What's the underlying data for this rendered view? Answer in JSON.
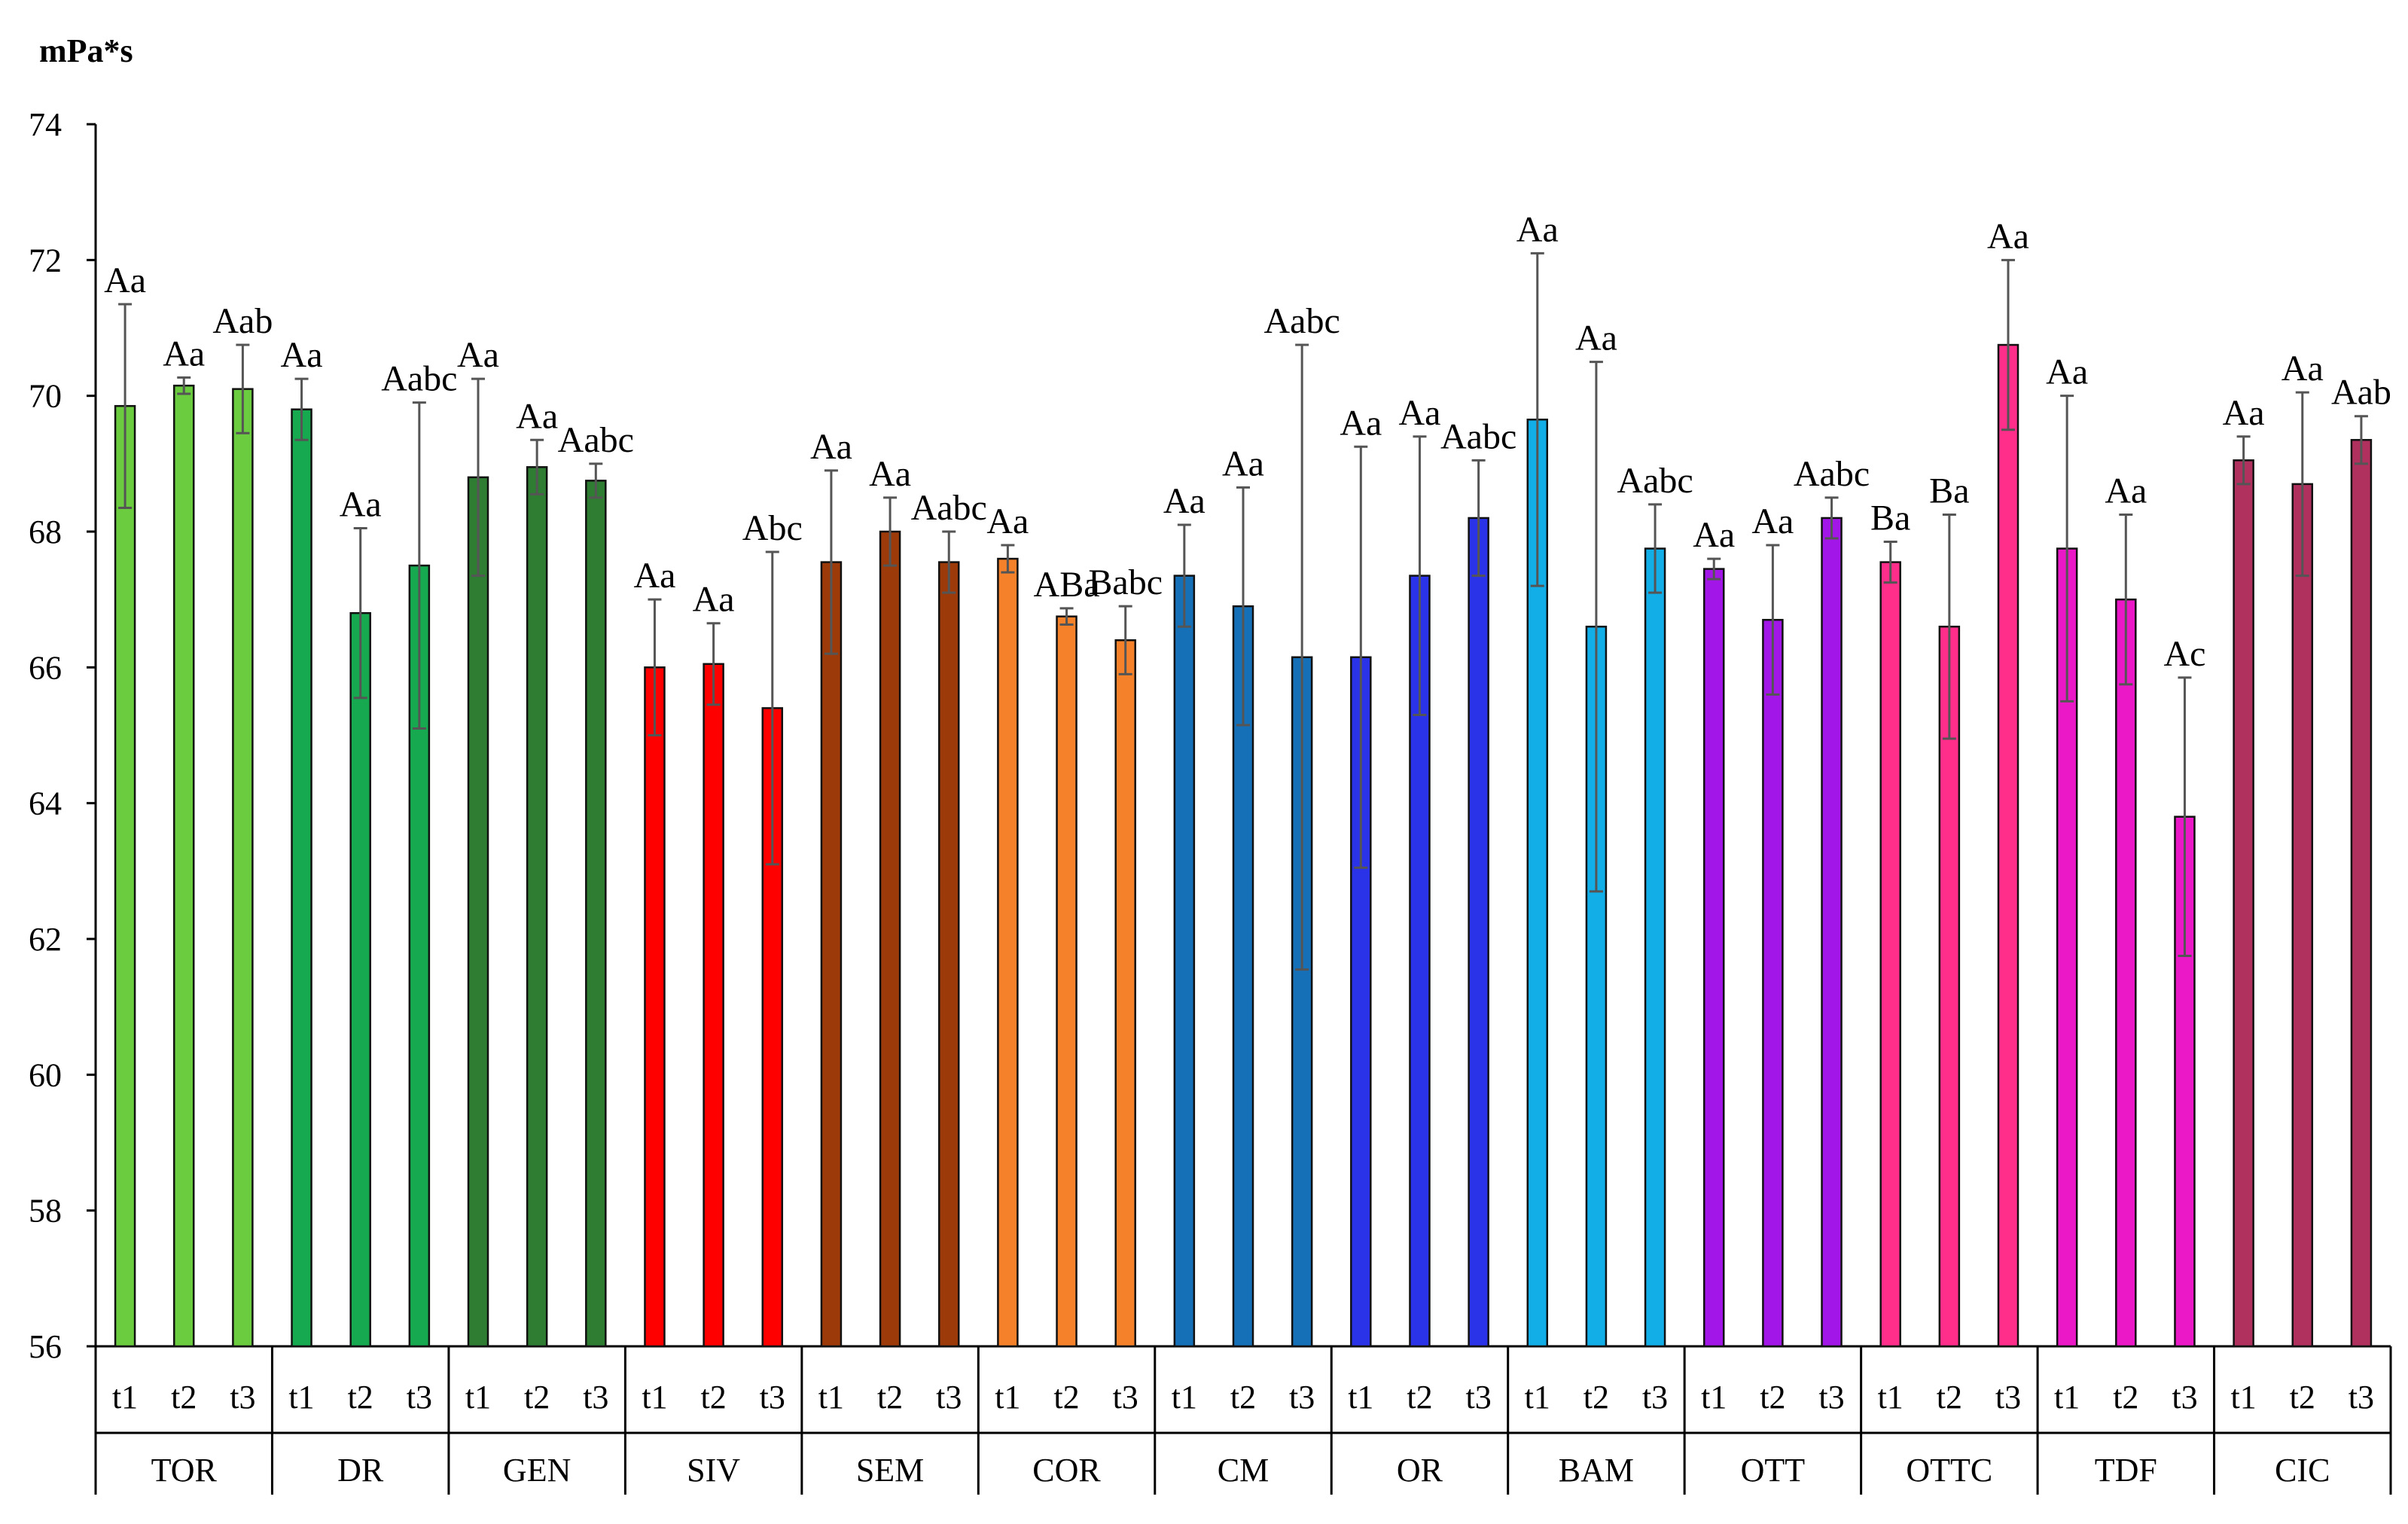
{
  "chart_data": {
    "type": "bar",
    "unit_label": "mPa*s",
    "ylim": [
      56,
      74
    ],
    "y_ticks": [
      56,
      58,
      60,
      62,
      64,
      66,
      68,
      70,
      72,
      74
    ],
    "error_bars": true,
    "grid": false,
    "groups": [
      {
        "name": "TOR",
        "color": "#6acc3e",
        "bars": [
          {
            "x": "t1",
            "value": 69.85,
            "err": 1.5,
            "label": "Aa"
          },
          {
            "x": "t2",
            "value": 70.15,
            "err": 0.12,
            "label": "Aa"
          },
          {
            "x": "t3",
            "value": 70.1,
            "err": 0.65,
            "label": "Aab"
          }
        ]
      },
      {
        "name": "DR",
        "color": "#16a94f",
        "bars": [
          {
            "x": "t1",
            "value": 69.8,
            "err": 0.45,
            "label": "Aa"
          },
          {
            "x": "t2",
            "value": 66.8,
            "err": 1.25,
            "label": "Aa"
          },
          {
            "x": "t3",
            "value": 67.5,
            "err": 2.4,
            "label": "Aabc"
          }
        ]
      },
      {
        "name": "GEN",
        "color": "#2e7d32",
        "bars": [
          {
            "x": "t1",
            "value": 68.8,
            "err": 1.45,
            "label": "Aa"
          },
          {
            "x": "t2",
            "value": 68.95,
            "err": 0.4,
            "label": "Aa"
          },
          {
            "x": "t3",
            "value": 68.75,
            "err": 0.25,
            "label": "Aabc"
          }
        ]
      },
      {
        "name": "SIV",
        "color": "#ff0000",
        "bars": [
          {
            "x": "t1",
            "value": 66.0,
            "err": 1.0,
            "label": "Aa"
          },
          {
            "x": "t2",
            "value": 66.05,
            "err": 0.6,
            "label": "Aa"
          },
          {
            "x": "t3",
            "value": 65.4,
            "err": 2.3,
            "label": "Abc"
          }
        ]
      },
      {
        "name": "SEM",
        "color": "#9c3a0a",
        "bars": [
          {
            "x": "t1",
            "value": 67.55,
            "err": 1.35,
            "label": "Aa"
          },
          {
            "x": "t2",
            "value": 68.0,
            "err": 0.5,
            "label": "Aa"
          },
          {
            "x": "t3",
            "value": 67.55,
            "err": 0.45,
            "label": "Aabc"
          }
        ]
      },
      {
        "name": "COR",
        "color": "#f5822a",
        "bars": [
          {
            "x": "t1",
            "value": 67.6,
            "err": 0.2,
            "label": "Aa"
          },
          {
            "x": "t2",
            "value": 66.75,
            "err": 0.12,
            "label": "ABa"
          },
          {
            "x": "t3",
            "value": 66.4,
            "err": 0.5,
            "label": "Babc"
          }
        ]
      },
      {
        "name": "CM",
        "color": "#1670b8",
        "bars": [
          {
            "x": "t1",
            "value": 67.35,
            "err": 0.75,
            "label": "Aa"
          },
          {
            "x": "t2",
            "value": 66.9,
            "err": 1.75,
            "label": "Aa"
          },
          {
            "x": "t3",
            "value": 66.15,
            "err": 4.6,
            "label": "Aabc"
          }
        ]
      },
      {
        "name": "OR",
        "color": "#2a33e8",
        "bars": [
          {
            "x": "t1",
            "value": 66.15,
            "err": 3.1,
            "label": "Aa"
          },
          {
            "x": "t2",
            "value": 67.35,
            "err": 2.05,
            "label": "Aa"
          },
          {
            "x": "t3",
            "value": 68.2,
            "err": 0.85,
            "label": "Aabc"
          }
        ]
      },
      {
        "name": "BAM",
        "color": "#12aee8",
        "bars": [
          {
            "x": "t1",
            "value": 69.65,
            "err": 2.45,
            "label": "Aa"
          },
          {
            "x": "t2",
            "value": 66.6,
            "err": 3.9,
            "label": "Aa"
          },
          {
            "x": "t3",
            "value": 67.75,
            "err": 0.65,
            "label": "Aabc"
          }
        ]
      },
      {
        "name": "OTT",
        "color": "#a316e8",
        "bars": [
          {
            "x": "t1",
            "value": 67.45,
            "err": 0.15,
            "label": "Aa"
          },
          {
            "x": "t2",
            "value": 66.7,
            "err": 1.1,
            "label": "Aa"
          },
          {
            "x": "t3",
            "value": 68.2,
            "err": 0.3,
            "label": "Aabc"
          }
        ]
      },
      {
        "name": "OTTC",
        "color": "#ff2e8a",
        "bars": [
          {
            "x": "t1",
            "value": 67.55,
            "err": 0.3,
            "label": "Ba"
          },
          {
            "x": "t2",
            "value": 66.6,
            "err": 1.65,
            "label": "Ba"
          },
          {
            "x": "t3",
            "value": 70.75,
            "err": 1.25,
            "label": "Aa"
          }
        ]
      },
      {
        "name": "TDF",
        "color": "#ea18c6",
        "bars": [
          {
            "x": "t1",
            "value": 67.75,
            "err": 2.25,
            "label": "Aa"
          },
          {
            "x": "t2",
            "value": 67.0,
            "err": 1.25,
            "label": "Aa"
          },
          {
            "x": "t3",
            "value": 63.8,
            "err": 2.05,
            "label": "Ac"
          }
        ]
      },
      {
        "name": "CIC",
        "color": "#b0305e",
        "bars": [
          {
            "x": "t1",
            "value": 69.05,
            "err": 0.35,
            "label": "Aa"
          },
          {
            "x": "t2",
            "value": 68.7,
            "err": 1.35,
            "label": "Aa"
          },
          {
            "x": "t3",
            "value": 69.35,
            "err": 0.35,
            "label": "Aab"
          }
        ]
      }
    ]
  }
}
